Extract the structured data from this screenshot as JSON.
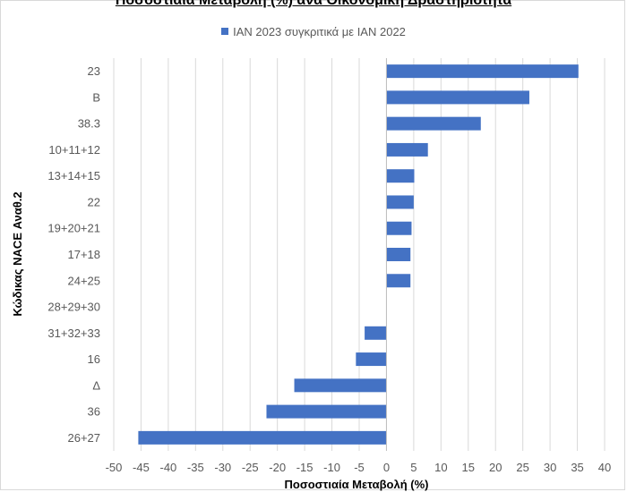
{
  "chart_data": {
    "type": "bar",
    "orientation": "horizontal",
    "title": "Ποσοστιαία Μεταβολή (%) ανά Οικονομική Δραστηριότητα",
    "xlabel": "Ποσοστιαία Μεταβολή (%)",
    "ylabel": "Κώδικας NACE Αναθ.2",
    "xlim": [
      -50,
      40
    ],
    "xticks": [
      -50,
      -45,
      -40,
      -35,
      -30,
      -25,
      -20,
      -15,
      -10,
      -5,
      0,
      5,
      10,
      15,
      20,
      25,
      30,
      35,
      40
    ],
    "grid": true,
    "legend_position": "top",
    "bar_color": "#4472c4",
    "categories": [
      "23",
      "B",
      "38.3",
      "10+11+12",
      "13+14+15",
      "22",
      "19+20+21",
      "17+18",
      "24+25",
      "28+29+30",
      "31+32+33",
      "16",
      "Δ",
      "36",
      "26+27"
    ],
    "series": [
      {
        "name": "ΙΑΝ 2023 συγκριτικά με ΙΑΝ 2022",
        "values": [
          35.2,
          26.2,
          17.3,
          7.6,
          5.1,
          5.0,
          4.6,
          4.4,
          4.4,
          0.0,
          -4.0,
          -5.6,
          -16.9,
          -22.0,
          -45.5
        ]
      }
    ]
  }
}
